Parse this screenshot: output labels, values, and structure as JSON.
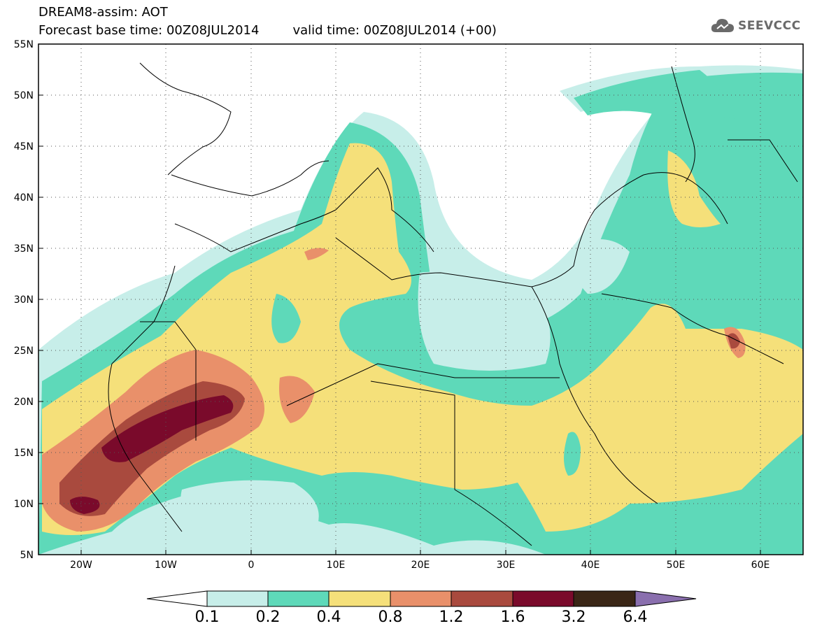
{
  "header": {
    "model": "DREAM8-assim: AOT",
    "base_time": "Forecast base time: 00Z08JUL2014",
    "valid_time": "valid time: 00Z08JUL2014 (+00)"
  },
  "brand": {
    "name": "SEEVCCC",
    "icon": "cloud-icon"
  },
  "map": {
    "lon_range": [
      -25,
      65
    ],
    "lat_range": [
      5,
      55
    ],
    "lon_ticks": [
      "20W",
      "10W",
      "0",
      "10E",
      "20E",
      "30E",
      "40E",
      "50E",
      "60E"
    ],
    "lat_ticks": [
      "55N",
      "50N",
      "45N",
      "40N",
      "35N",
      "30N",
      "25N",
      "20N",
      "15N",
      "10N",
      "5N"
    ],
    "grid": "dotted"
  },
  "colorbar": {
    "labels": [
      "0.1",
      "0.2",
      "0.4",
      "0.8",
      "1.2",
      "1.6",
      "3.2",
      "6.4"
    ],
    "colors": [
      "#ffffff",
      "#c7eee9",
      "#5ed9b9",
      "#f5e07a",
      "#e9906a",
      "#a94a3e",
      "#7a0a2b",
      "#3a2616",
      "#8a6fae"
    ]
  }
}
